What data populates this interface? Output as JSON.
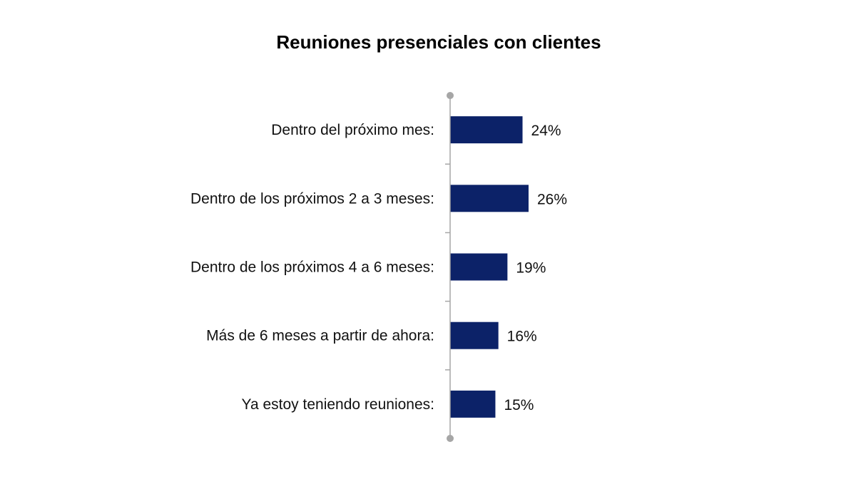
{
  "chart_data": {
    "type": "bar",
    "orientation": "horizontal",
    "title": "Reuniones presenciales con clientes",
    "categories": [
      "Dentro del próximo mes:",
      "Dentro de los próximos 2 a 3 meses:",
      "Dentro de los próximos 4 a 6 meses:",
      "Más de 6 meses a partir de ahora:",
      "Ya estoy teniendo reuniones:"
    ],
    "values": [
      24,
      26,
      19,
      16,
      15
    ],
    "value_labels": [
      "24%",
      "26%",
      "19%",
      "16%",
      "15%"
    ],
    "unit": "%",
    "xlim": [
      0,
      100
    ],
    "grid": false,
    "legend": "none",
    "bar_color": "#0c2268",
    "axis_color": "#a6a6a6"
  }
}
